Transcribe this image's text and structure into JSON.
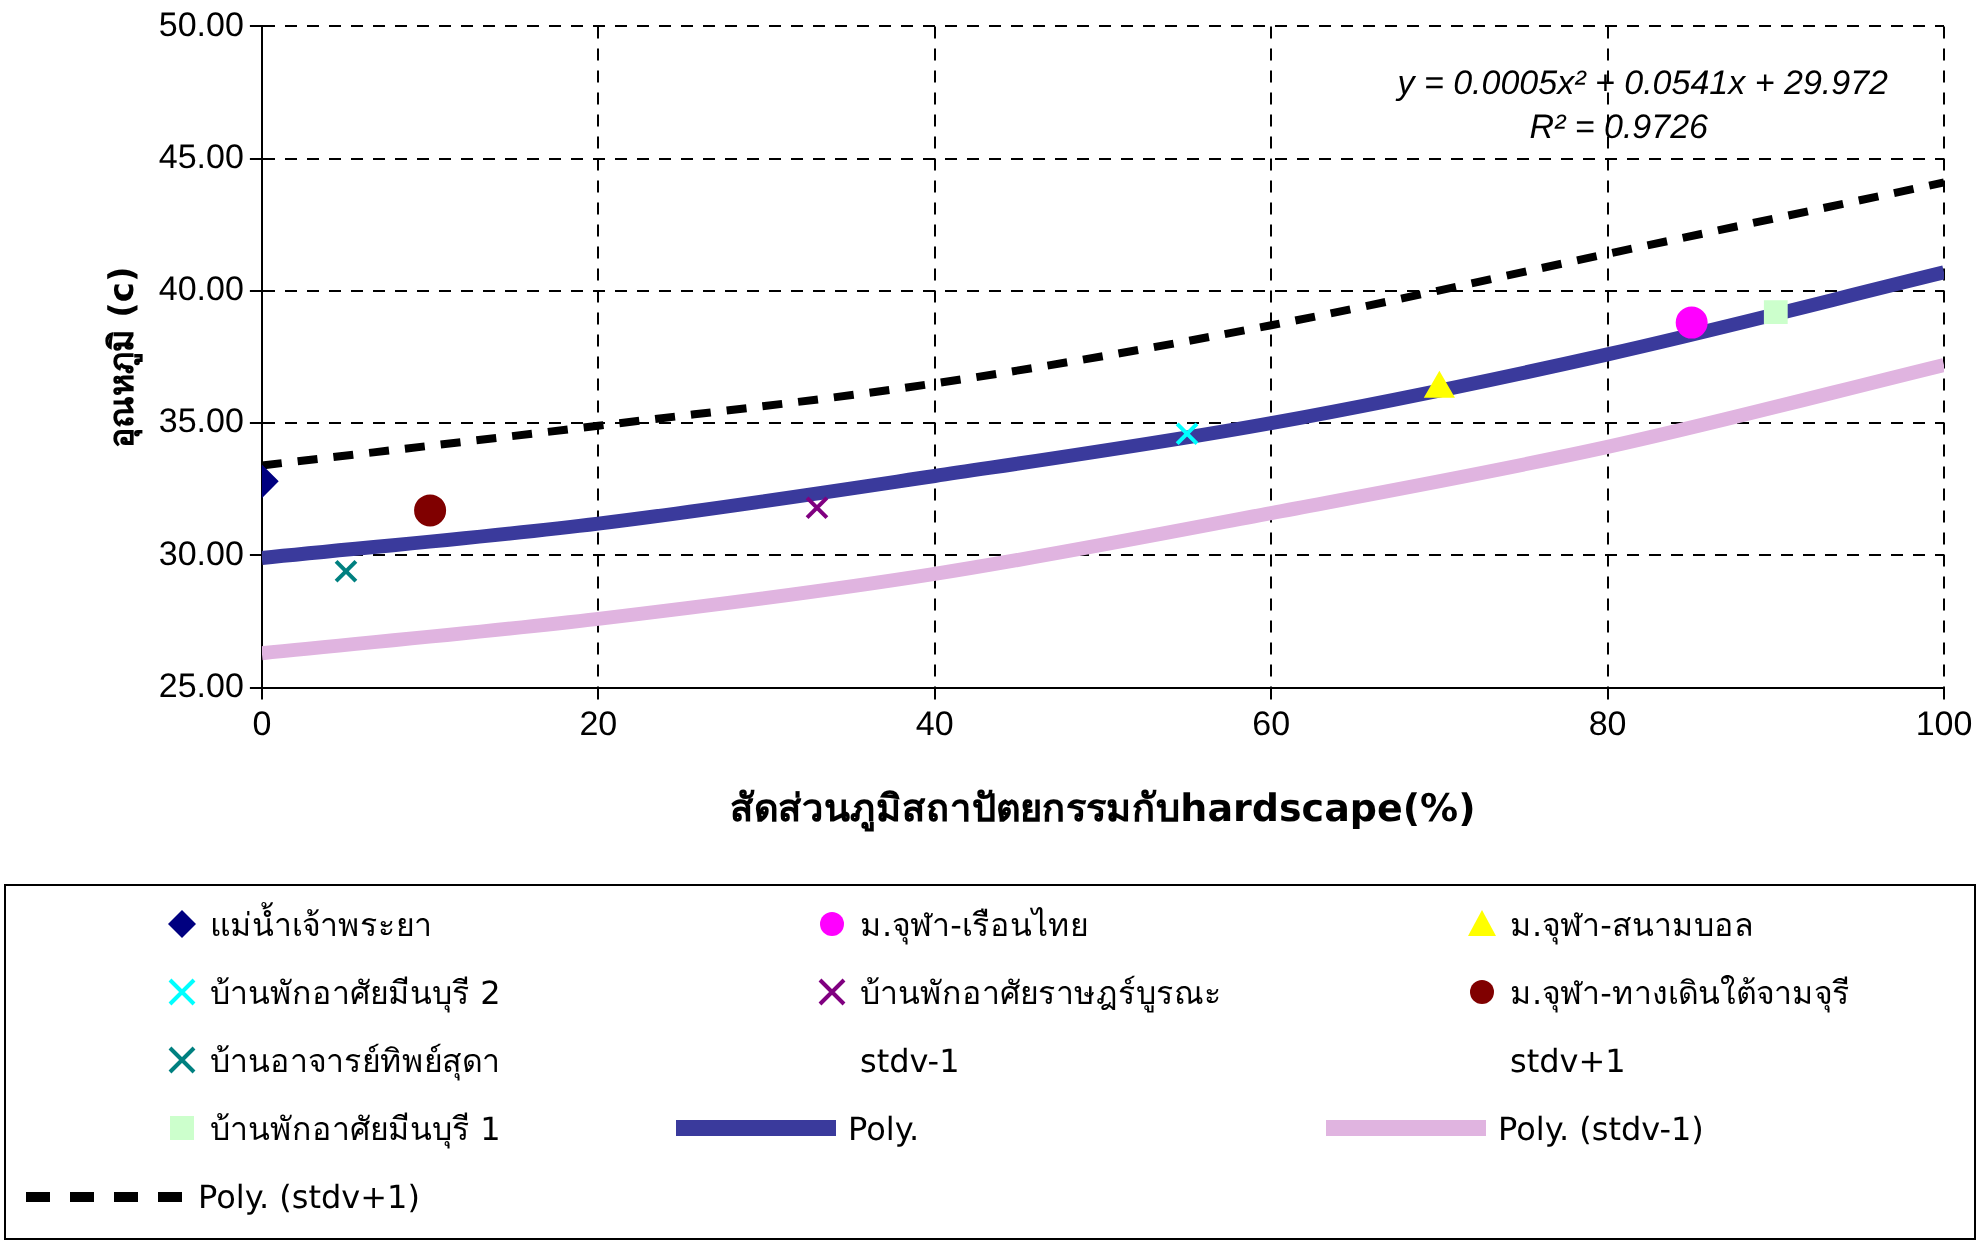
{
  "chart_data": {
    "type": "scatter",
    "xlabel": "สัดส่วนภูมิสถาปัตยกรรมกับhardscape(%)",
    "ylabel": "อุณหภูมิ (c)",
    "xlim": [
      0,
      100
    ],
    "xticks": [
      0,
      20,
      40,
      60,
      80,
      100
    ],
    "ylim": [
      25,
      50
    ],
    "yticks": [
      {
        "value": 25,
        "label": "25.00"
      },
      {
        "value": 30,
        "label": "30.00"
      },
      {
        "value": 35,
        "label": "35.00"
      },
      {
        "value": 40,
        "label": "40.00"
      },
      {
        "value": 45,
        "label": "45.00"
      },
      {
        "value": 50,
        "label": "50.00"
      }
    ],
    "grid": true,
    "legend": "bottom",
    "annotations": [
      "y = 0.0005x² + 0.0541x + 29.972",
      "R² = 0.9726"
    ],
    "series": [
      {
        "name": "แม่น้ำเจ้าพระยา",
        "marker": "diamond",
        "color": "#000080",
        "x": [
          0
        ],
        "values": [
          32.8
        ]
      },
      {
        "name": "ม.จุฬา-เรือนไทย",
        "marker": "circle",
        "color": "#ff00ff",
        "x": [
          85
        ],
        "values": [
          38.8
        ]
      },
      {
        "name": "ม.จุฬา-สนามบอล",
        "marker": "triangle",
        "color": "#ffff00",
        "x": [
          70
        ],
        "values": [
          36.3
        ]
      },
      {
        "name": "บ้านพักอาศัยมีนบุรี 2",
        "marker": "cross",
        "color": "#00ffff",
        "x": [
          55
        ],
        "values": [
          34.6
        ]
      },
      {
        "name": "บ้านพักอาศัยราษฎร์บูรณะ",
        "marker": "cross",
        "color": "#800080",
        "x": [
          33
        ],
        "values": [
          31.8
        ]
      },
      {
        "name": "ม.จุฬา-ทางเดินใต้จามจุรี",
        "marker": "circle",
        "color": "#800000",
        "x": [
          10
        ],
        "values": [
          31.7
        ]
      },
      {
        "name": "บ้านอาจารย์ทิพย์สุดา",
        "marker": "cross",
        "color": "#008080",
        "x": [
          5
        ],
        "values": [
          29.4
        ]
      },
      {
        "name": "stdv-1",
        "marker": "none"
      },
      {
        "name": "stdv+1",
        "marker": "none"
      },
      {
        "name": "บ้านพักอาศัยมีนบุรี 1",
        "marker": "square",
        "color": "#ccffcc",
        "x": [
          90
        ],
        "values": [
          39.2
        ]
      },
      {
        "name": "Poly.",
        "type": "line",
        "marker": "none",
        "line_style": "solid",
        "color": "#3a3a9c",
        "x": [
          0,
          20,
          40,
          60,
          80,
          100
        ],
        "values": [
          29.9,
          31.2,
          33.0,
          35.0,
          37.6,
          40.7
        ]
      },
      {
        "name": "Poly. (stdv-1)",
        "type": "line",
        "marker": "none",
        "line_style": "solid",
        "color": "#e0b4e0",
        "x": [
          0,
          20,
          40,
          60,
          80,
          100
        ],
        "values": [
          26.3,
          27.6,
          29.3,
          31.6,
          34.1,
          37.2
        ]
      },
      {
        "name": "Poly. (stdv+1)",
        "type": "line",
        "marker": "none",
        "line_style": "dashed",
        "color": "#000000",
        "x": [
          0,
          20,
          40,
          60,
          80,
          100
        ],
        "values": [
          33.4,
          34.9,
          36.5,
          38.7,
          41.4,
          44.1
        ]
      }
    ]
  }
}
